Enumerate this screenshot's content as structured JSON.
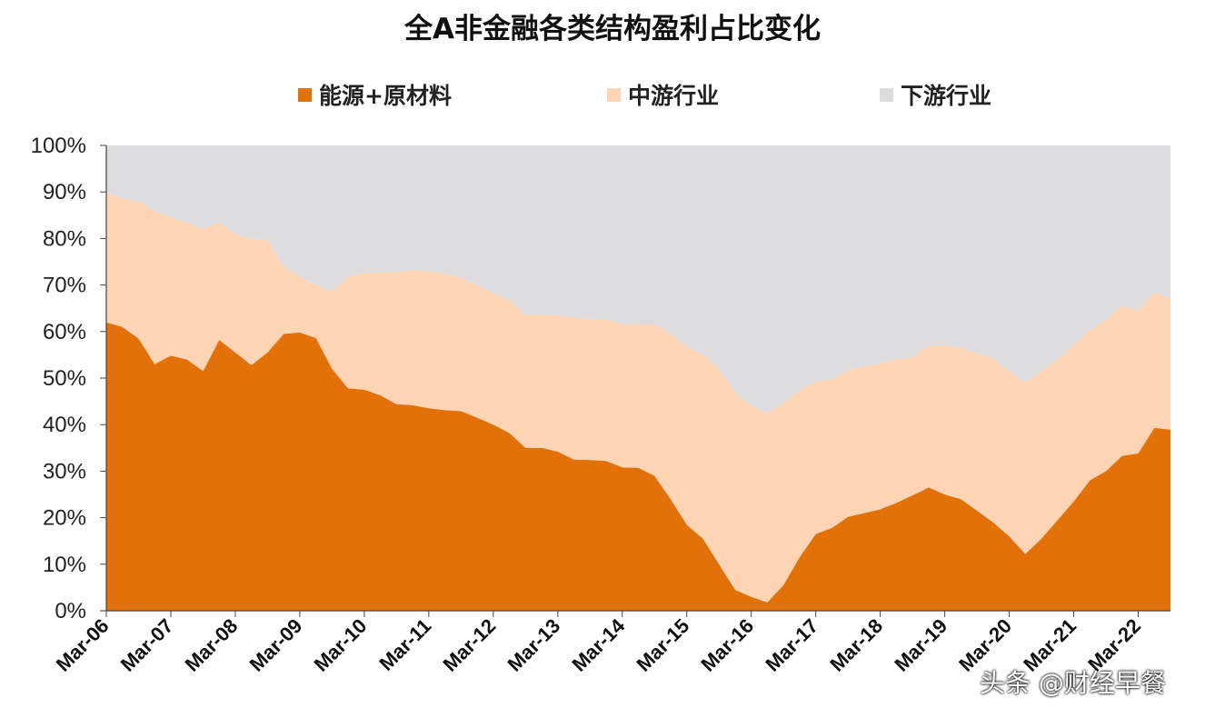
{
  "colors": {
    "energy": "#e37109",
    "midstream": "#fdd5b4",
    "downstream": "#dcdcde"
  },
  "legend": [
    {
      "label": "能源+原材料",
      "color": "#e37109"
    },
    {
      "label": "中游行业",
      "color": "#fdd5b4"
    },
    {
      "label": "下游行业",
      "color": "#dcdcde"
    }
  ],
  "watermark": "头条 @财经早餐",
  "chart_data": {
    "type": "area",
    "stacked": true,
    "title": "全A非金融各类结构盈利占比变化",
    "xlabel": "",
    "ylabel": "",
    "ylim": [
      0,
      100
    ],
    "yticks": [
      "0%",
      "10%",
      "20%",
      "30%",
      "40%",
      "50%",
      "60%",
      "70%",
      "80%",
      "90%",
      "100%"
    ],
    "xticks": [
      "Mar-06",
      "Mar-07",
      "Mar-08",
      "Mar-09",
      "Mar-10",
      "Mar-11",
      "Mar-12",
      "Mar-13",
      "Mar-14",
      "Mar-15",
      "Mar-16",
      "Mar-17",
      "Mar-18",
      "Mar-19",
      "Mar-20",
      "Mar-21",
      "Mar-22"
    ],
    "legend_position": "top",
    "grid": false,
    "x": [
      2006.0,
      2006.25,
      2006.5,
      2006.75,
      2007.0,
      2007.25,
      2007.5,
      2007.75,
      2008.0,
      2008.25,
      2008.5,
      2008.75,
      2009.0,
      2009.25,
      2009.5,
      2009.75,
      2010.0,
      2010.25,
      2010.5,
      2010.75,
      2011.0,
      2011.25,
      2011.5,
      2011.75,
      2012.0,
      2012.25,
      2012.5,
      2012.75,
      2013.0,
      2013.25,
      2013.5,
      2013.75,
      2014.0,
      2014.25,
      2014.5,
      2014.75,
      2015.0,
      2015.25,
      2015.5,
      2015.75,
      2016.0,
      2016.25,
      2016.5,
      2016.75,
      2017.0,
      2017.25,
      2017.5,
      2017.75,
      2018.0,
      2018.25,
      2018.5,
      2018.75,
      2019.0,
      2019.25,
      2019.5,
      2019.75,
      2020.0,
      2020.25,
      2020.5,
      2020.75,
      2021.0,
      2021.25,
      2021.5,
      2021.75,
      2022.0,
      2022.25,
      2022.5
    ],
    "series": [
      {
        "name": "能源+原材料",
        "values": [
          62,
          61,
          58.5,
          53,
          54.8,
          54,
          51.5,
          58.2,
          55.5,
          52.8,
          55.5,
          59.5,
          59.8,
          58.6,
          52,
          47.8,
          47.5,
          46.3,
          44.4,
          44.2,
          43.5,
          43.1,
          42.9,
          41.5,
          40,
          38.2,
          35,
          35,
          34.2,
          32.5,
          32.4,
          32.2,
          30.8,
          30.7,
          29,
          24,
          18.5,
          15.5,
          10,
          4.5,
          3,
          1.8,
          5.5,
          11.5,
          16.5,
          17.8,
          20.2,
          21,
          21.8,
          23.2,
          24.8,
          26.5,
          25,
          24,
          21.5,
          19,
          16,
          12.2,
          15.5,
          19.5,
          23.5,
          28,
          30,
          33.3,
          33.8,
          39.3,
          38.9
        ]
      },
      {
        "name": "中游行业",
        "values": [
          28,
          27.5,
          29.5,
          33,
          29.7,
          29.5,
          30.5,
          25.3,
          25.5,
          27,
          24.3,
          14.5,
          12,
          11.4,
          16.5,
          24,
          25,
          26.4,
          28.4,
          28.9,
          29.5,
          29.4,
          28.6,
          28.5,
          28.3,
          28.6,
          28.5,
          28.7,
          29.3,
          30.5,
          30.3,
          30.3,
          30.9,
          30.8,
          32.5,
          35.5,
          38.3,
          39.5,
          42,
          42.3,
          41,
          40.6,
          39.1,
          35.8,
          32.7,
          32,
          31.5,
          31.5,
          31.4,
          30.8,
          29.6,
          30.5,
          32,
          32.6,
          33.8,
          35.2,
          35.5,
          36.8,
          36,
          34.5,
          33.5,
          32.3,
          32.4,
          32.3,
          30.6,
          29.2,
          28.1
        ]
      },
      {
        "name": "下游行业",
        "values": [
          10,
          11.5,
          12,
          14,
          15.5,
          16.5,
          18,
          16.5,
          19,
          20.2,
          20.2,
          26,
          28.2,
          30,
          31.5,
          28.2,
          27.5,
          27.3,
          27.2,
          26.9,
          27,
          27.5,
          28.5,
          30,
          31.7,
          33.2,
          36.5,
          36.3,
          36.5,
          37,
          37.3,
          37.5,
          38.3,
          38.5,
          38.5,
          40.5,
          43.2,
          45,
          48,
          53.2,
          56,
          57.6,
          55.4,
          52.7,
          50.8,
          50.2,
          48.3,
          47.5,
          46.8,
          46,
          45.6,
          43,
          43,
          43.4,
          44.7,
          45.8,
          48.5,
          51,
          48.5,
          46,
          43,
          39.7,
          37.6,
          34.4,
          35.6,
          31.5,
          33
        ]
      }
    ]
  }
}
